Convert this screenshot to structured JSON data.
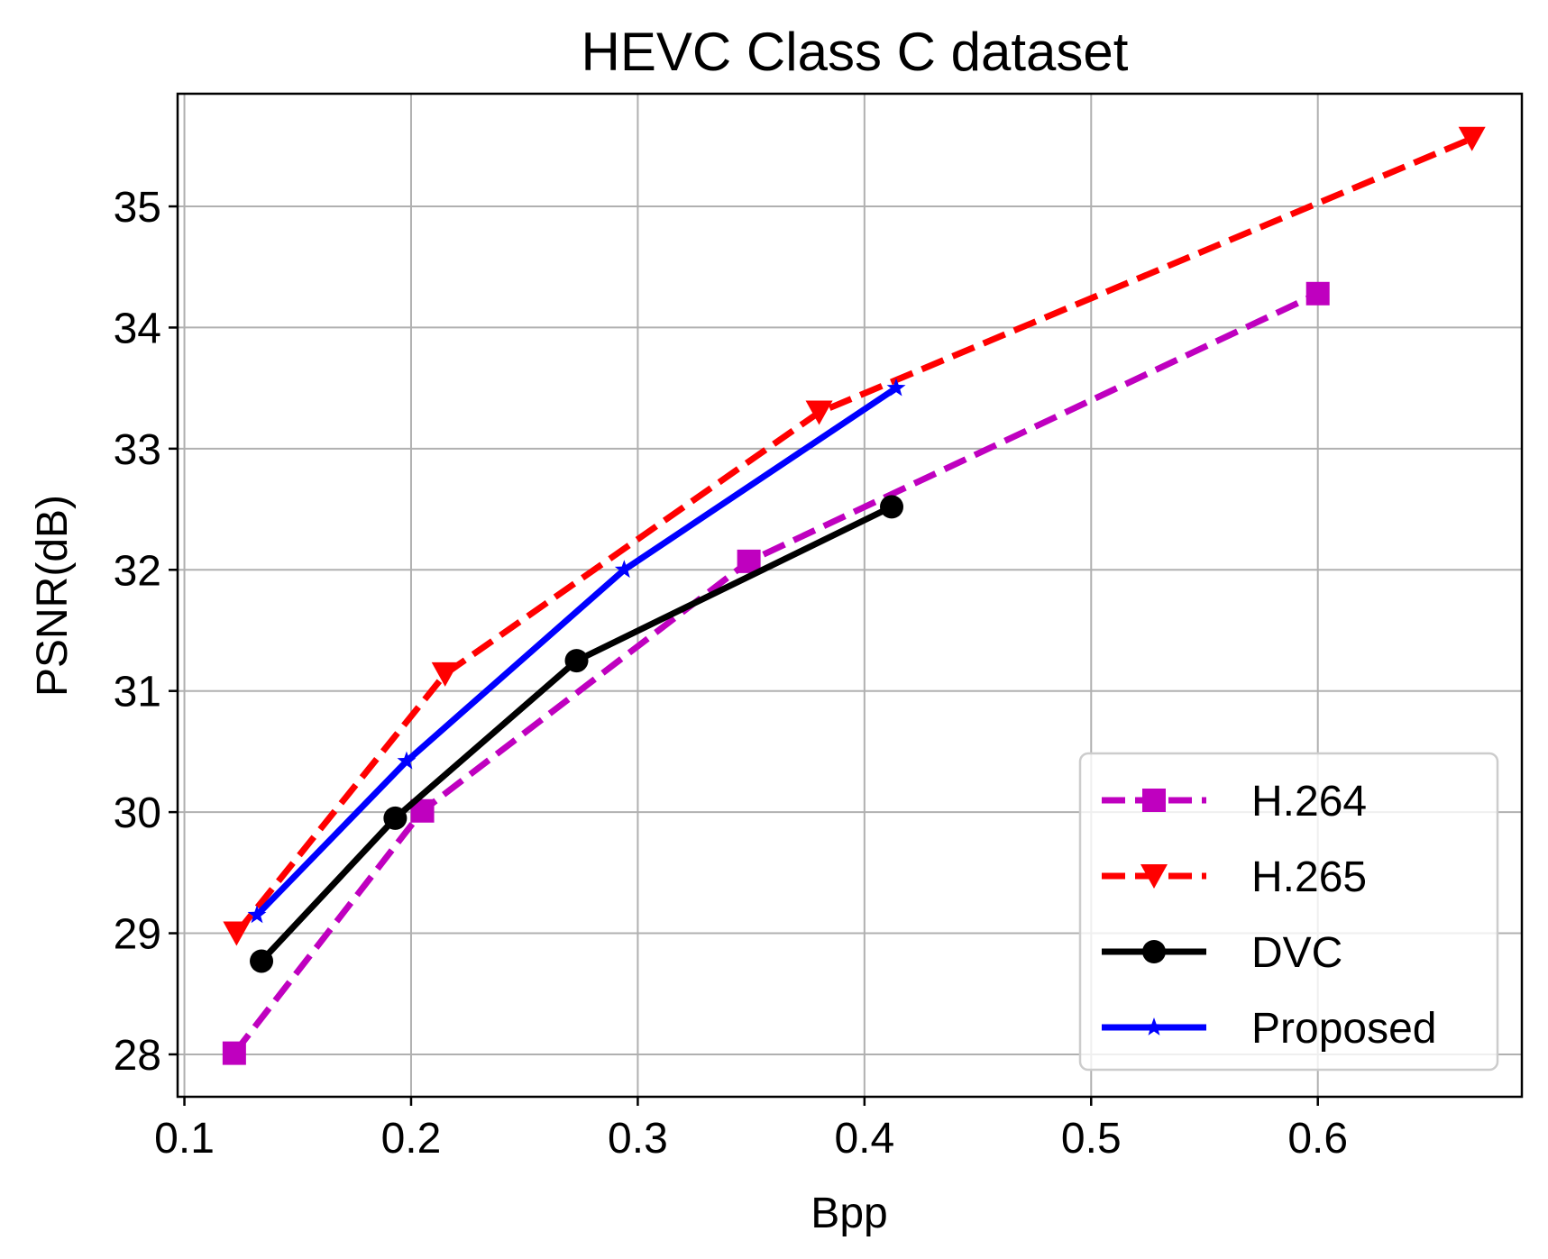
{
  "chart_data": {
    "type": "line",
    "title": "HEVC Class C dataset",
    "xlabel": "Bpp",
    "ylabel": "PSNR(dB)",
    "xlim": [
      0.097,
      0.69
    ],
    "ylim": [
      27.65,
      35.93
    ],
    "xticks": [
      0.1,
      0.2,
      0.3,
      0.4,
      0.5,
      0.6
    ],
    "xtick_labels": [
      "0.1",
      "0.2",
      "0.3",
      "0.4",
      "0.5",
      "0.6"
    ],
    "yticks": [
      28,
      29,
      30,
      31,
      32,
      33,
      34,
      35
    ],
    "ytick_labels": [
      "28",
      "29",
      "30",
      "31",
      "32",
      "33",
      "34",
      "35"
    ],
    "grid": true,
    "legend_position": "lower-right",
    "series": [
      {
        "name": "H.264",
        "color": "#bf00bf",
        "marker": "square",
        "line_style": "dashed",
        "x": [
          0.122,
          0.205,
          0.349,
          0.6
        ],
        "y": [
          28.01,
          30.01,
          32.07,
          34.28
        ]
      },
      {
        "name": "H.265",
        "color": "#ff0000",
        "marker": "triangle-down",
        "line_style": "dashed",
        "x": [
          0.123,
          0.215,
          0.38,
          0.668
        ],
        "y": [
          29.0,
          31.14,
          33.3,
          35.56
        ]
      },
      {
        "name": "DVC",
        "color": "#000000",
        "marker": "circle",
        "line_style": "solid",
        "x": [
          0.134,
          0.193,
          0.273,
          0.412
        ],
        "y": [
          28.77,
          29.95,
          31.25,
          32.52
        ]
      },
      {
        "name": "Proposed",
        "color": "#0000ff",
        "marker": "star",
        "line_style": "solid",
        "x": [
          0.132,
          0.198,
          0.294,
          0.414
        ],
        "y": [
          29.15,
          30.42,
          32.0,
          33.5
        ]
      }
    ]
  }
}
